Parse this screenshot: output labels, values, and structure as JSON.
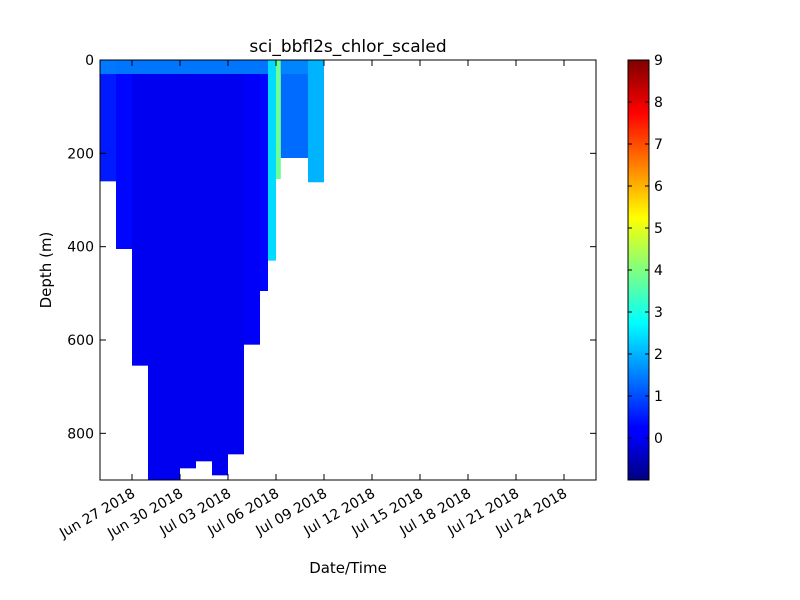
{
  "chart_data": {
    "type": "scatter",
    "title": "sci_bbfl2s_chlor_scaled",
    "xlabel": "Date/Time",
    "ylabel": "Depth (m)",
    "xlim": [
      "2018-06-25",
      "2018-07-26"
    ],
    "ylim": [
      900,
      0
    ],
    "y_inverted": true,
    "x_ticks": [
      "Jun 27 2018",
      "Jun 30 2018",
      "Jul 03 2018",
      "Jul 06 2018",
      "Jul 09 2018",
      "Jul 12 2018",
      "Jul 15 2018",
      "Jul 18 2018",
      "Jul 21 2018",
      "Jul 24 2018"
    ],
    "y_ticks": [
      "0",
      "200",
      "400",
      "600",
      "800"
    ],
    "colorbar": {
      "colormap": "jet",
      "range": [
        -1,
        9
      ],
      "ticks": [
        "0",
        "1",
        "2",
        "3",
        "4",
        "5",
        "6",
        "7",
        "8",
        "9"
      ]
    },
    "profiles": [
      {
        "start": "2018-06-25",
        "end": "2018-06-26",
        "max_depth": 260,
        "value": 0.5
      },
      {
        "start": "2018-06-26",
        "end": "2018-06-27",
        "max_depth": 405,
        "value": 0.3
      },
      {
        "start": "2018-06-27",
        "end": "2018-06-28",
        "max_depth": 655,
        "value": 0.1
      },
      {
        "start": "2018-06-28",
        "end": "2018-06-30",
        "max_depth": 900,
        "value": 0.1
      },
      {
        "start": "2018-06-30",
        "end": "2018-07-01",
        "max_depth": 875,
        "value": 0.1
      },
      {
        "start": "2018-07-01",
        "end": "2018-07-02",
        "max_depth": 860,
        "value": 0.1
      },
      {
        "start": "2018-07-02",
        "end": "2018-07-03",
        "max_depth": 890,
        "value": 0.1
      },
      {
        "start": "2018-07-03",
        "end": "2018-07-04",
        "max_depth": 845,
        "value": 0.1
      },
      {
        "start": "2018-07-04",
        "end": "2018-07-05",
        "max_depth": 610,
        "value": 0.2
      },
      {
        "start": "2018-07-05",
        "end": "2018-07-05.5",
        "max_depth": 495,
        "value": 0.3
      },
      {
        "start": "2018-07-05.5",
        "end": "2018-07-06",
        "max_depth": 430,
        "value": 2.4
      },
      {
        "start": "2018-07-06",
        "end": "2018-07-06.3",
        "max_depth": 255,
        "value": 3.8
      },
      {
        "start": "2018-07-06.3",
        "end": "2018-07-08",
        "max_depth": 210,
        "value": 1.3
      },
      {
        "start": "2018-07-08",
        "end": "2018-07-09",
        "max_depth": 262,
        "value": 2.0
      }
    ]
  }
}
